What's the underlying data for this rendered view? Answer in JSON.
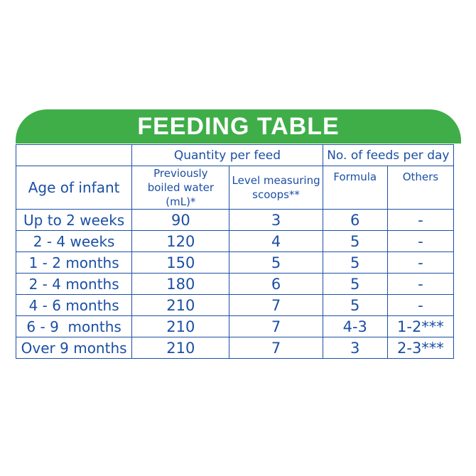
{
  "title": "FEEDING TABLE",
  "headers": {
    "quantity_group": "Quantity per feed",
    "feeds_group": "No. of feeds per day",
    "age": "Age of infant",
    "water_line1": "Previously",
    "water_line2": "boiled water (mL)*",
    "scoops_line1": "Level measuring",
    "scoops_line2": "scoops**",
    "formula": "Formula",
    "others": "Others"
  },
  "rows": [
    {
      "age": "Up to 2 weeks",
      "water": "90",
      "scoops": "3",
      "formula": "6",
      "others": "-"
    },
    {
      "age": "2 - 4 weeks",
      "water": "120",
      "scoops": "4",
      "formula": "5",
      "others": "-"
    },
    {
      "age": "1 - 2 months",
      "water": "150",
      "scoops": "5",
      "formula": "5",
      "others": "-"
    },
    {
      "age": "2 - 4 months",
      "water": "180",
      "scoops": "6",
      "formula": "5",
      "others": "-"
    },
    {
      "age": "4 - 6 months",
      "water": "210",
      "scoops": "7",
      "formula": "5",
      "others": "-"
    },
    {
      "age": "6 - 9  months",
      "water": "210",
      "scoops": "7",
      "formula": "4-3",
      "others": "1-2***"
    },
    {
      "age": "Over 9 months",
      "water": "210",
      "scoops": "7",
      "formula": "3",
      "others": "2-3***"
    }
  ],
  "colors": {
    "banner": "#3fae49",
    "table_text": "#1b4fa4",
    "title_text": "#ffffff"
  }
}
